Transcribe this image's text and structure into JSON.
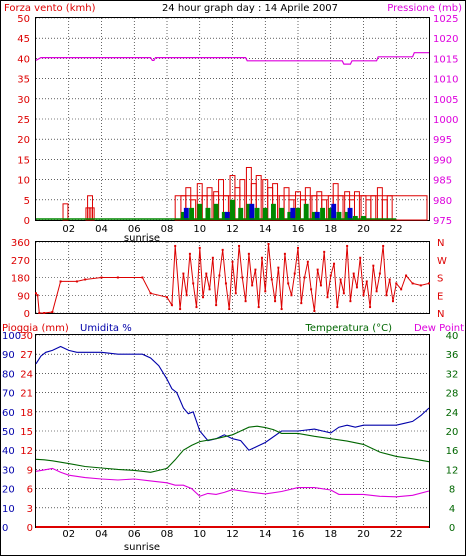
{
  "header": {
    "title": "24 hour graph day : 14 Aprile 2007",
    "wind_label": "Forza vento (kmh)",
    "pressure_label": "Pressione (mb)",
    "rain_label": "Pioggia (mm)",
    "humidity_label": "Umidita %",
    "temperature_label": "Temperatura (°C)",
    "dewpoint_label": "Dew Point",
    "sunrise_label": "sunrise"
  },
  "colors": {
    "wind": "#dd0000",
    "gust": "#dd0000",
    "pressure": "#dd00dd",
    "rain": "#dd0000",
    "humidity": "#0000aa",
    "temperature": "#006600",
    "dewpoint": "#dd00dd",
    "grid": "#000000",
    "panel_bg": "#ffffff",
    "axis_green": "#008800"
  },
  "chart_data": [
    {
      "type": "line",
      "title": "24 hour graph day : 14 Aprile 2007",
      "x_ticks": [
        "02",
        "04",
        "06",
        "08",
        "10",
        "12",
        "14",
        "16",
        "18",
        "20",
        "22"
      ],
      "x_range": [
        0,
        24
      ],
      "left_axis": {
        "label": "Forza vento (kmh)",
        "ticks": [
          0,
          5,
          10,
          15,
          20,
          25,
          30,
          35,
          40,
          45,
          50
        ],
        "range": [
          0,
          50
        ]
      },
      "right_axis": {
        "label": "Pressione (mb)",
        "ticks": [
          975,
          980,
          985,
          990,
          995,
          1000,
          1005,
          1010,
          1015,
          1020,
          1025
        ],
        "range": [
          975,
          1025
        ]
      },
      "series": [
        {
          "name": "Pressione (mb)",
          "axis": "right",
          "color": "#dd00dd",
          "x": [
            0,
            0.3,
            7.0,
            7.1,
            7.2,
            7.3,
            8.0,
            12.8,
            12.9,
            18.7,
            18.8,
            19.2,
            19.3,
            20.8,
            20.9,
            23.0,
            23.1,
            24
          ],
          "y": [
            1014.5,
            1015.2,
            1015.2,
            1014.5,
            1014.5,
            1015.2,
            1015.2,
            1015.2,
            1014.4,
            1014.4,
            1013.6,
            1013.6,
            1014.4,
            1014.4,
            1015.4,
            1015.4,
            1016.4,
            1016.4
          ]
        },
        {
          "name": "Forza vento (kmh)",
          "axis": "left",
          "color": "#dd0000",
          "style": "gust-bars",
          "x": [
            1.8,
            3.2,
            3.3,
            3.4,
            9.0,
            9.3,
            9.6,
            10.0,
            10.3,
            10.6,
            11.0,
            11.3,
            11.6,
            12.0,
            12.3,
            12.6,
            13.0,
            13.3,
            13.6,
            14.0,
            14.3,
            14.6,
            15.0,
            15.3,
            15.6,
            16.0,
            16.3,
            16.6,
            17.0,
            17.3,
            17.6,
            18.0,
            18.3,
            18.6,
            19.0,
            19.3,
            19.6,
            20.0,
            20.3,
            20.6,
            21.0,
            21.3,
            21.6
          ],
          "y": [
            4,
            3,
            6,
            3,
            6,
            8,
            5,
            9,
            6,
            8,
            7,
            10,
            6,
            11,
            8,
            10,
            13,
            9,
            11,
            10,
            8,
            9,
            6,
            8,
            5,
            7,
            5,
            8,
            6,
            7,
            5,
            6,
            9,
            6,
            7,
            5,
            7,
            6,
            5,
            6,
            8,
            5,
            6
          ]
        },
        {
          "name": "Vento medio",
          "axis": "left",
          "color": "#008800",
          "style": "avg-bars",
          "x": [
            9.0,
            9.5,
            10.0,
            10.5,
            11.0,
            11.5,
            12.0,
            12.5,
            13.0,
            13.5,
            14.0,
            14.5,
            15.0,
            15.5,
            16.0,
            16.5,
            17.0,
            17.5,
            18.0,
            18.5,
            19.0,
            19.5,
            20.0
          ],
          "y": [
            2,
            3,
            4,
            3,
            4,
            2,
            5,
            3,
            4,
            3,
            3,
            4,
            3,
            2,
            3,
            4,
            2,
            3,
            3,
            2,
            2,
            1,
            1
          ]
        },
        {
          "name": "Raffica",
          "axis": "left",
          "color": "#0000cc",
          "style": "gust-blue",
          "x": [
            9.0,
            11.5,
            13.0,
            15.5,
            17.0,
            18.0,
            19.0
          ],
          "y": [
            3,
            2,
            4,
            3,
            2,
            4,
            3
          ]
        }
      ]
    },
    {
      "type": "scatter",
      "title": "",
      "x_range": [
        0,
        24
      ],
      "left_axis": {
        "ticks": [
          0,
          90,
          180,
          270,
          360
        ],
        "range": [
          0,
          360
        ]
      },
      "right_axis": {
        "ticks": [
          "N",
          "W",
          "S",
          "E",
          "N"
        ]
      },
      "series": [
        {
          "name": "",
          "color": "#dd0000",
          "x": [
            0,
            0.1,
            0.2,
            0.5,
            1.0,
            1.5,
            2.5,
            3.0,
            4.0,
            5.0,
            6.5,
            7.0,
            8.0,
            8.3,
            8.5,
            8.8,
            9.0,
            9.2,
            9.4,
            9.6,
            9.8,
            10.0,
            10.2,
            10.4,
            10.6,
            10.8,
            11.0,
            11.2,
            11.4,
            11.6,
            11.8,
            12.0,
            12.2,
            12.4,
            12.6,
            12.8,
            13.0,
            13.2,
            13.4,
            13.6,
            13.8,
            14.0,
            14.2,
            14.4,
            14.6,
            14.8,
            15.0,
            15.2,
            15.4,
            15.6,
            15.8,
            16.0,
            16.2,
            16.4,
            16.6,
            16.8,
            17.0,
            17.2,
            17.4,
            17.6,
            17.8,
            18.0,
            18.2,
            18.4,
            18.6,
            18.8,
            19.0,
            19.2,
            19.4,
            19.6,
            19.8,
            20.0,
            20.2,
            20.4,
            20.6,
            20.8,
            21.0,
            21.2,
            21.4,
            21.6,
            21.8,
            22.0,
            22.3,
            22.6,
            23.0,
            23.5,
            24.0
          ],
          "y": [
            100,
            90,
            0,
            0,
            5,
            160,
            160,
            170,
            180,
            180,
            180,
            100,
            80,
            40,
            340,
            20,
            200,
            90,
            300,
            150,
            30,
            330,
            80,
            200,
            120,
            280,
            40,
            190,
            320,
            150,
            20,
            260,
            100,
            340,
            180,
            60,
            300,
            140,
            220,
            30,
            280,
            110,
            350,
            170,
            60,
            230,
            20,
            300,
            150,
            90,
            200,
            330,
            50,
            180,
            260,
            120,
            10,
            220,
            140,
            310,
            80,
            190,
            250,
            30,
            170,
            100,
            340,
            60,
            200,
            130,
            280,
            90,
            160,
            30,
            240,
            110,
            200,
            340,
            90,
            170,
            60,
            150,
            120,
            190,
            150,
            140,
            150
          ]
        }
      ]
    },
    {
      "type": "line",
      "title": "",
      "x_ticks": [
        "02",
        "04",
        "06",
        "08",
        "10",
        "12",
        "14",
        "16",
        "18",
        "20",
        "22"
      ],
      "x_range": [
        0,
        24
      ],
      "left_axis_outer": {
        "label": "Pioggia (mm)",
        "ticks": [
          0,
          10,
          20,
          30,
          40,
          50,
          60,
          70,
          80,
          90,
          100
        ]
      },
      "left_axis_inner": {
        "label": "Umidita %",
        "ticks": [
          0,
          3,
          6,
          9,
          12,
          15,
          18,
          21,
          24,
          27,
          30
        ]
      },
      "right_axis_outer": {
        "label": "Temperatura (°C)",
        "ticks": [
          0,
          4,
          8,
          12,
          16,
          20,
          24,
          28,
          32,
          36,
          40
        ]
      },
      "series": [
        {
          "name": "Umidita %",
          "color": "#0000aa",
          "axis": "percent",
          "x": [
            0,
            0.3,
            0.6,
            1.0,
            1.5,
            2.0,
            2.5,
            3.0,
            4.0,
            5.0,
            6.0,
            6.5,
            7.0,
            7.5,
            8.0,
            8.3,
            8.6,
            9.0,
            9.3,
            9.6,
            10.0,
            10.5,
            11.0,
            11.5,
            12.0,
            12.5,
            13.0,
            13.5,
            14.0,
            15.0,
            16.0,
            17.0,
            17.5,
            18.0,
            18.5,
            19.0,
            19.5,
            20.0,
            21.0,
            22.0,
            22.5,
            23.0,
            23.5,
            24.0
          ],
          "y": [
            85,
            89,
            91,
            92,
            94,
            92,
            91,
            91,
            91,
            90,
            90,
            90,
            88,
            84,
            77,
            72,
            70,
            62,
            59,
            60,
            50,
            45,
            46,
            48,
            46,
            45,
            40,
            42,
            44,
            50,
            50,
            51,
            50,
            49,
            52,
            53,
            52,
            53,
            53,
            53,
            54,
            55,
            58,
            62
          ]
        },
        {
          "name": "Temperatura (°C)",
          "color": "#006600",
          "axis": "temperature",
          "x": [
            0,
            0.5,
            1.0,
            2.0,
            3.0,
            4.0,
            5.0,
            6.0,
            6.5,
            7.0,
            7.5,
            8.0,
            8.5,
            9.0,
            9.5,
            10.0,
            11.0,
            12.0,
            12.5,
            13.0,
            13.5,
            14.0,
            14.5,
            15.0,
            16.0,
            17.0,
            18.0,
            19.0,
            20.0,
            21.0,
            22.0,
            23.0,
            24.0
          ],
          "y": [
            14.1,
            14.0,
            13.8,
            13.2,
            12.6,
            12.3,
            12.0,
            11.8,
            11.6,
            11.4,
            11.8,
            12.2,
            14.0,
            16.0,
            17.0,
            17.8,
            18.4,
            19.2,
            20.0,
            20.8,
            21.0,
            20.7,
            20.3,
            19.5,
            19.5,
            18.9,
            18.4,
            17.9,
            17.2,
            15.6,
            14.7,
            14.2,
            13.6
          ]
        },
        {
          "name": "Dew Point",
          "color": "#dd00dd",
          "axis": "temperature",
          "x": [
            0,
            0.5,
            1.0,
            1.5,
            2.0,
            3.0,
            4.0,
            5.0,
            6.0,
            7.0,
            8.0,
            8.5,
            9.0,
            9.5,
            10.0,
            10.5,
            11.0,
            11.5,
            12.0,
            13.0,
            14.0,
            15.0,
            16.0,
            17.0,
            18.0,
            18.5,
            19.0,
            20.0,
            21.0,
            22.0,
            23.0,
            24.0
          ],
          "y": [
            11.6,
            11.9,
            12.2,
            11.4,
            10.8,
            10.3,
            10.0,
            9.8,
            10.0,
            9.6,
            9.2,
            8.7,
            8.7,
            8.0,
            6.4,
            7.0,
            6.8,
            7.2,
            7.8,
            7.3,
            6.9,
            7.4,
            8.2,
            8.2,
            7.7,
            6.8,
            6.8,
            6.8,
            6.4,
            6.3,
            6.6,
            7.5
          ]
        },
        {
          "name": "Pioggia (mm)",
          "color": "#dd0000",
          "axis": "rain",
          "x": [
            0,
            24
          ],
          "y": [
            0,
            0
          ]
        }
      ]
    }
  ]
}
